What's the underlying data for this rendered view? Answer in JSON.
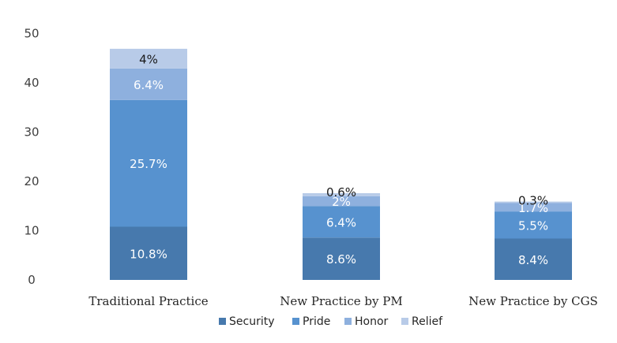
{
  "chart_data": {
    "type": "bar",
    "stacked": true,
    "categories": [
      "Traditional Practice",
      "New Practice by PM",
      "New Practice by CGS"
    ],
    "series": [
      {
        "name": "Security",
        "values": [
          10.8,
          8.6,
          8.4
        ],
        "labels": [
          "10.8%",
          "8.6%",
          "8.4%"
        ],
        "color": "#4779ad"
      },
      {
        "name": "Pride",
        "values": [
          25.7,
          6.4,
          5.5
        ],
        "labels": [
          "25.7%",
          "6.4%",
          "5.5%"
        ],
        "color": "#5792cf"
      },
      {
        "name": "Honor",
        "values": [
          6.4,
          2,
          1.7
        ],
        "labels": [
          "6.4%",
          "2%",
          "1.7%"
        ],
        "color": "#8eb0de"
      },
      {
        "name": "Relief",
        "values": [
          4,
          0.6,
          0.3
        ],
        "labels": [
          "4%",
          "0.6%",
          "0.3%"
        ],
        "color": "#b8cbe8"
      }
    ],
    "yticks": [
      "0",
      "10",
      "20",
      "30",
      "40",
      "50"
    ],
    "ylim": [
      0,
      50
    ],
    "grid": false,
    "legend_position": "bottom",
    "title": "",
    "xlabel": "",
    "ylabel": ""
  }
}
